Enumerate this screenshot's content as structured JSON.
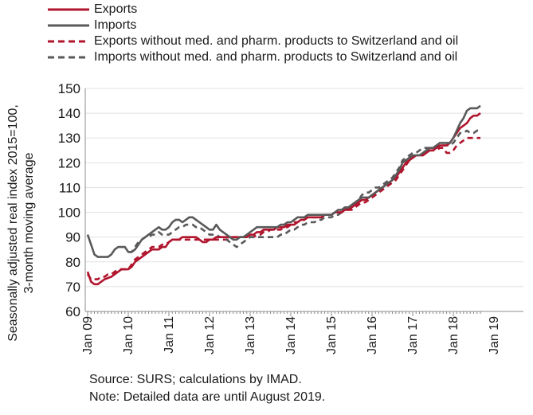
{
  "chart_data": {
    "type": "line",
    "ylabel_line1": "Seasonally adjusted real index 2015=100,",
    "ylabel_line2": "3-month moving average",
    "ylim": [
      60,
      150
    ],
    "yticks": [
      60,
      70,
      80,
      90,
      100,
      110,
      120,
      130,
      140,
      150
    ],
    "xtick_labels": [
      "Jan 09",
      "Jan 10",
      "Jan 11",
      "Jan 12",
      "Jan 13",
      "Jan 14",
      "Jan 15",
      "Jan 16",
      "Jan 17",
      "Jan 18",
      "Jan 19"
    ],
    "x_start": "Jan 09",
    "x_end": "Aug 19",
    "grid": "horizontal",
    "legend_position": "top-left",
    "series": [
      {
        "name": "Exports",
        "color": "#b0152d",
        "style": "solid",
        "values": [
          76,
          72,
          71,
          71,
          72,
          73,
          73.5,
          74,
          75,
          76,
          77,
          77,
          77,
          78,
          80,
          81,
          82,
          83,
          84,
          85,
          85,
          85,
          86,
          86,
          88,
          89,
          89,
          89,
          90,
          90,
          90,
          90,
          90,
          89,
          88,
          88,
          89,
          89,
          90,
          90,
          90,
          90,
          90,
          90,
          90,
          90,
          90,
          90,
          91,
          91,
          92,
          92,
          93,
          93,
          93,
          93,
          94,
          94,
          94,
          95,
          95,
          95,
          96,
          97,
          97,
          98,
          98,
          98,
          98,
          98,
          99,
          99,
          99,
          100,
          100,
          100,
          101,
          101,
          102,
          103,
          104,
          105,
          105,
          106,
          107,
          108,
          109,
          110,
          111,
          112,
          113,
          114,
          116,
          118,
          120,
          121,
          122,
          123,
          123,
          123,
          124,
          125,
          125,
          126,
          127,
          127,
          127,
          128,
          130,
          132,
          134,
          135,
          136,
          138,
          139,
          139,
          140
        ]
      },
      {
        "name": "Imports",
        "color": "#595959",
        "style": "solid",
        "values": [
          91,
          87,
          83,
          82,
          82,
          82,
          82,
          83,
          85,
          86,
          86,
          86,
          84,
          84,
          85,
          87,
          89,
          90,
          91,
          92,
          93,
          94,
          93,
          93,
          94,
          96,
          97,
          97,
          96,
          97,
          98,
          98,
          97,
          96,
          95,
          94,
          93,
          93,
          95,
          93,
          92,
          91,
          90,
          89,
          89,
          90,
          90,
          91,
          92,
          93,
          94,
          94,
          94,
          94,
          94,
          94,
          94,
          95,
          95,
          96,
          96,
          97,
          98,
          98,
          98,
          99,
          99,
          99,
          99,
          99,
          99,
          99,
          99,
          100,
          101,
          101,
          102,
          102,
          103,
          104,
          105,
          106,
          106,
          106,
          107,
          108,
          109,
          110,
          111,
          112,
          113,
          115,
          117,
          120,
          121,
          122,
          123,
          123,
          123,
          124,
          125,
          126,
          126,
          127,
          128,
          128,
          128,
          128,
          130,
          133,
          136,
          138,
          141,
          142,
          142,
          142,
          143
        ]
      },
      {
        "name": "Exports without med. and pharm. products to Switzerland and oil",
        "color": "#b0152d",
        "style": "dashed",
        "values": [
          75,
          73,
          73,
          73,
          74,
          74,
          75,
          75,
          76,
          77,
          77,
          77,
          77,
          79,
          81,
          82,
          83,
          84,
          85,
          86,
          86,
          86,
          87,
          87,
          88,
          89,
          89,
          89,
          89,
          89,
          89,
          89,
          89,
          89,
          89,
          89,
          89,
          89,
          89,
          89,
          89,
          89,
          89,
          90,
          90,
          90,
          90,
          90,
          90,
          90,
          91,
          91,
          92,
          92,
          93,
          93,
          93,
          93,
          94,
          94,
          95,
          96,
          96,
          97,
          97,
          98,
          98,
          98,
          98,
          98,
          99,
          99,
          99,
          100,
          100,
          100,
          101,
          101,
          101,
          102,
          103,
          104,
          104,
          105,
          106,
          107,
          108,
          109,
          110,
          111,
          112,
          113,
          115,
          117,
          119,
          121,
          122,
          123,
          123,
          123,
          124,
          125,
          125,
          125,
          126,
          126,
          124,
          124,
          125,
          127,
          128,
          129,
          130,
          130,
          130,
          130,
          130
        ]
      },
      {
        "name": "Imports without med. and pharm. products to Switzerland and oil",
        "color": "#595959",
        "style": "dashed",
        "values": [
          null,
          null,
          null,
          null,
          null,
          null,
          null,
          null,
          null,
          null,
          null,
          null,
          84,
          84,
          86,
          88,
          89,
          90,
          90,
          91,
          91,
          92,
          91,
          91,
          91,
          92,
          93,
          94,
          94,
          95,
          95,
          95,
          94,
          94,
          93,
          92,
          91,
          91,
          91,
          90,
          90,
          89,
          88,
          87,
          86,
          87,
          88,
          89,
          90,
          90,
          90,
          90,
          90,
          90,
          90,
          90,
          90,
          91,
          91,
          92,
          93,
          93,
          94,
          95,
          95,
          96,
          96,
          96,
          97,
          97,
          98,
          98,
          98,
          99,
          99,
          100,
          101,
          102,
          103,
          104,
          105,
          107,
          108,
          108,
          109,
          110,
          110,
          111,
          112,
          113,
          114,
          116,
          118,
          121,
          122,
          123,
          124,
          124,
          125,
          126,
          126,
          126,
          126,
          126,
          127,
          127,
          127,
          127,
          128,
          130,
          132,
          132,
          133,
          132,
          132,
          133,
          133
        ]
      }
    ],
    "notes": [
      "Source: SURS; calculations by IMAD.",
      "Note: Detailed data are until August 2019."
    ]
  }
}
